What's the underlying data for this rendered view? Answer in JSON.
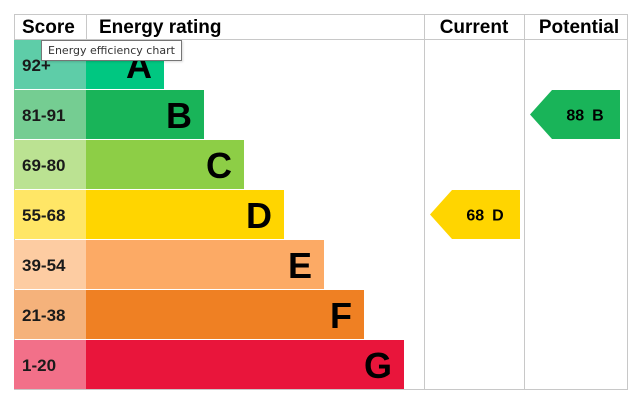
{
  "chart_data": {
    "type": "bar",
    "headers": {
      "score": "Score",
      "rating": "Energy rating",
      "current": "Current",
      "potential": "Potential"
    },
    "bands": [
      {
        "letter": "A",
        "range": "92+",
        "color": "#00c781",
        "score_color": "#5ecda8"
      },
      {
        "letter": "B",
        "range": "81-91",
        "color": "#19b459",
        "score_color": "#75cd92"
      },
      {
        "letter": "C",
        "range": "69-80",
        "color": "#8dce46",
        "score_color": "#bbe292"
      },
      {
        "letter": "D",
        "range": "55-68",
        "color": "#ffd500",
        "score_color": "#ffe666"
      },
      {
        "letter": "E",
        "range": "39-54",
        "color": "#fcaa65",
        "score_color": "#fdcca2"
      },
      {
        "letter": "F",
        "range": "21-38",
        "color": "#ef8023",
        "score_color": "#f5b27b"
      },
      {
        "letter": "G",
        "range": "1-20",
        "color": "#e9153b",
        "score_color": "#f27089"
      }
    ],
    "current": {
      "value": 68,
      "band": "D",
      "label": "68 D",
      "color": "#ffd500"
    },
    "potential": {
      "value": 88,
      "band": "B",
      "label": "88 B",
      "color": "#19b459"
    }
  },
  "tooltip": {
    "text": "Energy efficiency chart"
  }
}
